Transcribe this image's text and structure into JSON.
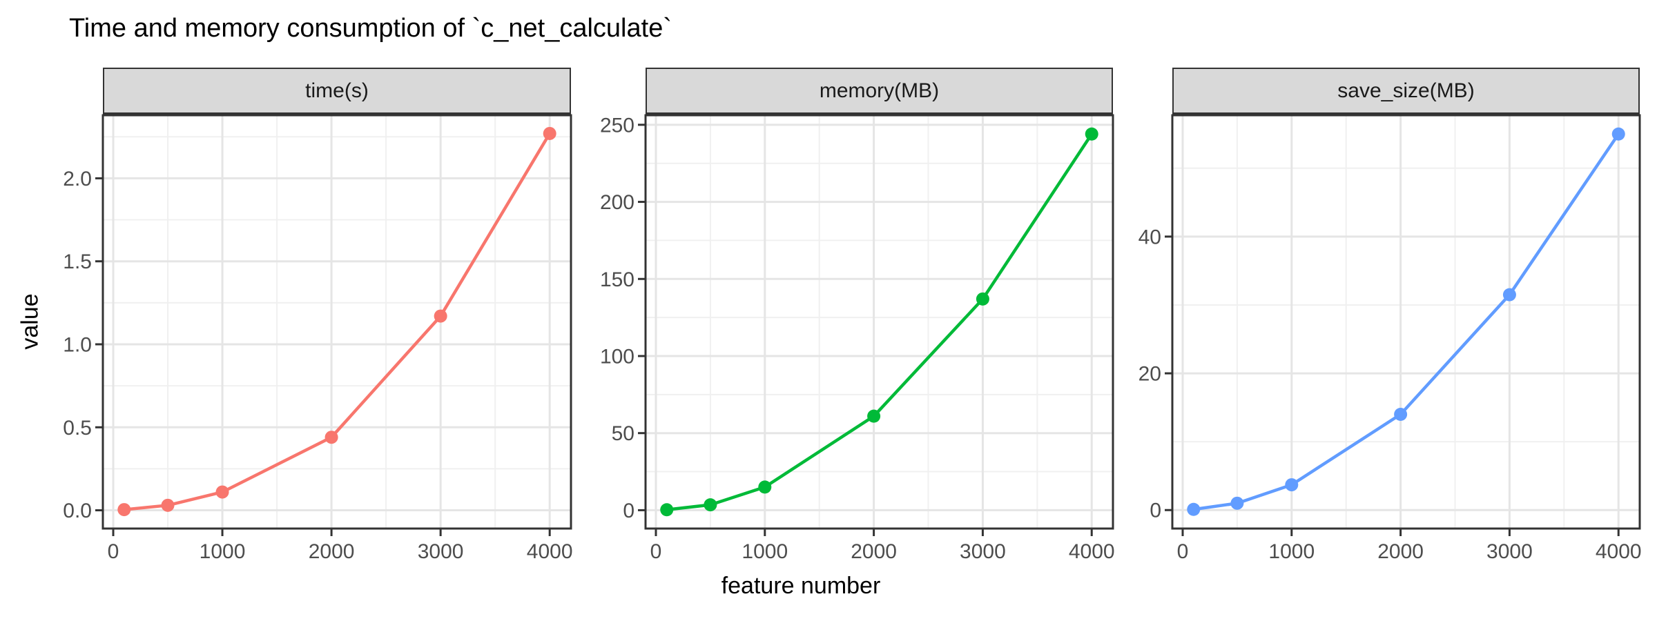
{
  "figure_title": "Time and memory consumption of `c_net_calculate`",
  "xlabel": "feature number",
  "ylabel": "value",
  "theme": {
    "background": "#FFFFFF",
    "panel_bg": "#FFFFFF",
    "strip_bg": "#D9D9D9",
    "panel_border": "#333333",
    "grid_major": "#E5E5E5",
    "grid_minor": "#F0F0F0",
    "axis_text": "#4D4D4D",
    "tick_color": "#333333",
    "title_color": "#000000"
  },
  "x_axis": {
    "lim": [
      -95,
      4195
    ],
    "ticks": [
      0,
      1000,
      2000,
      3000,
      4000
    ],
    "tick_labels": [
      "0",
      "1000",
      "2000",
      "3000",
      "4000"
    ],
    "minor": [
      500,
      1500,
      2500,
      3500
    ]
  },
  "chart_data": [
    {
      "type": "line",
      "title": "time(s)",
      "xlabel": "feature number",
      "ylabel": "value",
      "grid": true,
      "legend": "none",
      "color": "#F8766D",
      "x": [
        100,
        500,
        1000,
        2000,
        3000,
        4000
      ],
      "values": [
        0.004,
        0.03,
        0.11,
        0.44,
        1.17,
        2.27
      ],
      "xlim": [
        -95,
        4195
      ],
      "ylim": [
        -0.11,
        2.38
      ],
      "yticks": [
        0,
        0.5,
        1,
        1.5,
        2
      ],
      "ytick_labels": [
        "0.0",
        "0.5",
        "1.0",
        "1.5",
        "2.0"
      ],
      "yminor": [
        0.25,
        0.75,
        1.25,
        1.75,
        2.25
      ]
    },
    {
      "type": "line",
      "title": "memory(MB)",
      "xlabel": "feature number",
      "ylabel": "value",
      "grid": true,
      "legend": "none",
      "color": "#00BA38",
      "x": [
        100,
        500,
        1000,
        2000,
        3000,
        4000
      ],
      "values": [
        0.3,
        3.5,
        15,
        61,
        137,
        244
      ],
      "xlim": [
        -95,
        4195
      ],
      "ylim": [
        -11.9,
        256.2
      ],
      "yticks": [
        0,
        50,
        100,
        150,
        200,
        250
      ],
      "ytick_labels": [
        "0",
        "50",
        "100",
        "150",
        "200",
        "250"
      ],
      "yminor": [
        25,
        75,
        125,
        175,
        225
      ]
    },
    {
      "type": "line",
      "title": "save_size(MB)",
      "xlabel": "feature number",
      "ylabel": "value",
      "grid": true,
      "legend": "none",
      "color": "#619CFF",
      "x": [
        100,
        500,
        1000,
        2000,
        3000,
        4000
      ],
      "values": [
        0.1,
        1,
        3.7,
        14,
        31.5,
        55
      ],
      "xlim": [
        -95,
        4195
      ],
      "ylim": [
        -2.7,
        57.75
      ],
      "yticks": [
        0,
        20,
        40
      ],
      "ytick_labels": [
        "0",
        "20",
        "40"
      ],
      "yminor": [
        10,
        30,
        50
      ]
    }
  ]
}
